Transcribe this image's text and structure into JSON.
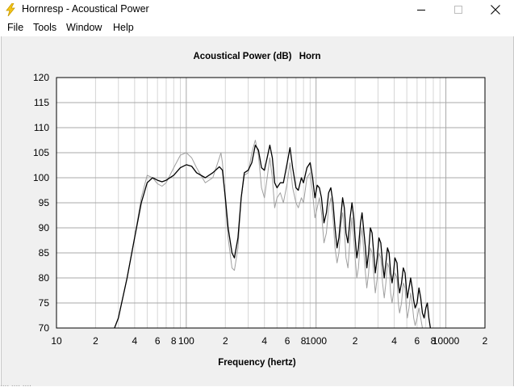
{
  "window": {
    "title": "Hornresp - Acoustical Power",
    "app_icon": "lightning-icon",
    "controls": [
      "minimize-icon",
      "maximize-icon",
      "close-icon"
    ]
  },
  "menu": {
    "items": [
      {
        "label": "File"
      },
      {
        "label": "Tools"
      },
      {
        "label": "Window"
      },
      {
        "label": "Help"
      }
    ]
  },
  "chart_data": {
    "type": "line",
    "title": "Acoustical Power (dB)",
    "title_suffix": "Horn",
    "xlabel": "Frequency (hertz)",
    "ylabel": "",
    "x_scale": "log",
    "xlim": [
      10,
      20000
    ],
    "ylim": [
      70,
      120
    ],
    "grid": true,
    "y_ticks": [
      "120",
      "115",
      "110",
      "105",
      "100",
      "95",
      "90",
      "85",
      "80",
      "75",
      "70"
    ],
    "x_ticks": [
      {
        "value": 10,
        "label": "10"
      },
      {
        "value": 20,
        "label": "2"
      },
      {
        "value": 40,
        "label": "4"
      },
      {
        "value": 60,
        "label": "6"
      },
      {
        "value": 80,
        "label": "8"
      },
      {
        "value": 100,
        "label": "100"
      },
      {
        "value": 200,
        "label": "2"
      },
      {
        "value": 400,
        "label": "4"
      },
      {
        "value": 600,
        "label": "6"
      },
      {
        "value": 800,
        "label": "8"
      },
      {
        "value": 1000,
        "label": "1000"
      },
      {
        "value": 2000,
        "label": "2"
      },
      {
        "value": 4000,
        "label": "4"
      },
      {
        "value": 6000,
        "label": "6"
      },
      {
        "value": 8000,
        "label": "8"
      },
      {
        "value": 10000,
        "label": "10000"
      },
      {
        "value": 20000,
        "label": "2"
      }
    ],
    "series": [
      {
        "color": "#000000",
        "points": [
          [
            28,
            70
          ],
          [
            30,
            72
          ],
          [
            35,
            80
          ],
          [
            40,
            88
          ],
          [
            45,
            95
          ],
          [
            50,
            99
          ],
          [
            55,
            100
          ],
          [
            60,
            99.5
          ],
          [
            65,
            99.2
          ],
          [
            70,
            99.5
          ],
          [
            80,
            100.5
          ],
          [
            90,
            102
          ],
          [
            100,
            102.6
          ],
          [
            110,
            102.3
          ],
          [
            120,
            101
          ],
          [
            140,
            100
          ],
          [
            160,
            101
          ],
          [
            180,
            102.2
          ],
          [
            190,
            101.5
          ],
          [
            200,
            96
          ],
          [
            210,
            90
          ],
          [
            225,
            85
          ],
          [
            235,
            84
          ],
          [
            250,
            88
          ],
          [
            265,
            96
          ],
          [
            280,
            101
          ],
          [
            300,
            101.5
          ],
          [
            320,
            103
          ],
          [
            340,
            106.5
          ],
          [
            360,
            105.5
          ],
          [
            380,
            102
          ],
          [
            400,
            101.5
          ],
          [
            420,
            104
          ],
          [
            440,
            106.5
          ],
          [
            460,
            104
          ],
          [
            480,
            99
          ],
          [
            500,
            98
          ],
          [
            530,
            99
          ],
          [
            560,
            99
          ],
          [
            600,
            103
          ],
          [
            630,
            106
          ],
          [
            660,
            102
          ],
          [
            700,
            98
          ],
          [
            730,
            97.5
          ],
          [
            770,
            100
          ],
          [
            800,
            99
          ],
          [
            850,
            102
          ],
          [
            900,
            103
          ],
          [
            940,
            100
          ],
          [
            980,
            96
          ],
          [
            1020,
            98.5
          ],
          [
            1060,
            98
          ],
          [
            1100,
            96
          ],
          [
            1150,
            91
          ],
          [
            1200,
            93
          ],
          [
            1250,
            97
          ],
          [
            1300,
            98
          ],
          [
            1350,
            95
          ],
          [
            1400,
            90
          ],
          [
            1450,
            86
          ],
          [
            1500,
            88
          ],
          [
            1560,
            93
          ],
          [
            1600,
            96
          ],
          [
            1650,
            94
          ],
          [
            1700,
            89
          ],
          [
            1760,
            87
          ],
          [
            1830,
            92
          ],
          [
            1890,
            95
          ],
          [
            1950,
            92
          ],
          [
            2000,
            88
          ],
          [
            2060,
            84
          ],
          [
            2120,
            86
          ],
          [
            2200,
            91
          ],
          [
            2260,
            93
          ],
          [
            2320,
            90
          ],
          [
            2400,
            86
          ],
          [
            2460,
            82
          ],
          [
            2540,
            85
          ],
          [
            2620,
            90
          ],
          [
            2700,
            89
          ],
          [
            2780,
            85
          ],
          [
            2860,
            81
          ],
          [
            2960,
            84
          ],
          [
            3050,
            88
          ],
          [
            3150,
            87
          ],
          [
            3250,
            83
          ],
          [
            3350,
            80
          ],
          [
            3450,
            83
          ],
          [
            3550,
            86
          ],
          [
            3650,
            85
          ],
          [
            3750,
            81
          ],
          [
            3850,
            79
          ],
          [
            3950,
            81
          ],
          [
            4050,
            84
          ],
          [
            4200,
            83
          ],
          [
            4300,
            79
          ],
          [
            4400,
            77
          ],
          [
            4550,
            79
          ],
          [
            4700,
            82
          ],
          [
            4850,
            81
          ],
          [
            4950,
            78
          ],
          [
            5050,
            76
          ],
          [
            5200,
            78
          ],
          [
            5350,
            80
          ],
          [
            5500,
            78
          ],
          [
            5650,
            75.5
          ],
          [
            5800,
            74
          ],
          [
            6000,
            75
          ],
          [
            6200,
            78
          ],
          [
            6400,
            76
          ],
          [
            6600,
            73
          ],
          [
            6800,
            72
          ],
          [
            7000,
            74
          ],
          [
            7200,
            75
          ],
          [
            7400,
            72
          ],
          [
            7600,
            70
          ]
        ]
      },
      {
        "color": "#a0a0a0",
        "points": [
          [
            28,
            70
          ],
          [
            30,
            72
          ],
          [
            35,
            80
          ],
          [
            40,
            88
          ],
          [
            45,
            96
          ],
          [
            50,
            100.5
          ],
          [
            55,
            100
          ],
          [
            60,
            98.8
          ],
          [
            65,
            98.3
          ],
          [
            70,
            99
          ],
          [
            80,
            102
          ],
          [
            90,
            104.5
          ],
          [
            100,
            105
          ],
          [
            110,
            104
          ],
          [
            120,
            102
          ],
          [
            140,
            99
          ],
          [
            160,
            100
          ],
          [
            180,
            104
          ],
          [
            185,
            105
          ],
          [
            190,
            103
          ],
          [
            200,
            95
          ],
          [
            210,
            88
          ],
          [
            225,
            82
          ],
          [
            235,
            81.5
          ],
          [
            250,
            86
          ],
          [
            265,
            96
          ],
          [
            280,
            100.5
          ],
          [
            300,
            101
          ],
          [
            320,
            105
          ],
          [
            340,
            107.5
          ],
          [
            360,
            104.5
          ],
          [
            380,
            98
          ],
          [
            400,
            96
          ],
          [
            420,
            100
          ],
          [
            440,
            104
          ],
          [
            460,
            100
          ],
          [
            480,
            94
          ],
          [
            500,
            96
          ],
          [
            530,
            97
          ],
          [
            560,
            95
          ],
          [
            600,
            99
          ],
          [
            630,
            103
          ],
          [
            660,
            98
          ],
          [
            700,
            95
          ],
          [
            730,
            94
          ],
          [
            770,
            96
          ],
          [
            800,
            95
          ],
          [
            850,
            100
          ],
          [
            900,
            101
          ],
          [
            940,
            97
          ],
          [
            980,
            92
          ],
          [
            1020,
            94
          ],
          [
            1060,
            96
          ],
          [
            1100,
            93
          ],
          [
            1150,
            87
          ],
          [
            1200,
            89
          ],
          [
            1250,
            94
          ],
          [
            1300,
            96
          ],
          [
            1350,
            92
          ],
          [
            1400,
            86
          ],
          [
            1450,
            83
          ],
          [
            1500,
            85
          ],
          [
            1560,
            91
          ],
          [
            1600,
            93
          ],
          [
            1650,
            90
          ],
          [
            1700,
            84
          ],
          [
            1760,
            82
          ],
          [
            1830,
            88
          ],
          [
            1890,
            92
          ],
          [
            1950,
            88
          ],
          [
            2000,
            84
          ],
          [
            2060,
            80
          ],
          [
            2120,
            82
          ],
          [
            2200,
            88
          ],
          [
            2260,
            90
          ],
          [
            2320,
            86
          ],
          [
            2400,
            81
          ],
          [
            2460,
            78
          ],
          [
            2540,
            81
          ],
          [
            2620,
            86
          ],
          [
            2700,
            85
          ],
          [
            2780,
            81
          ],
          [
            2860,
            77
          ],
          [
            2960,
            80
          ],
          [
            3050,
            85
          ],
          [
            3150,
            84
          ],
          [
            3250,
            79
          ],
          [
            3350,
            76
          ],
          [
            3450,
            79
          ],
          [
            3550,
            83
          ],
          [
            3650,
            82
          ],
          [
            3750,
            77
          ],
          [
            3850,
            75
          ],
          [
            3950,
            77
          ],
          [
            4050,
            81
          ],
          [
            4200,
            80
          ],
          [
            4300,
            75
          ],
          [
            4400,
            73
          ],
          [
            4550,
            75
          ],
          [
            4700,
            79
          ],
          [
            4850,
            78
          ],
          [
            4950,
            74
          ],
          [
            5050,
            72
          ],
          [
            5200,
            74
          ],
          [
            5350,
            77
          ],
          [
            5500,
            75
          ],
          [
            5650,
            72
          ],
          [
            5800,
            70.5
          ],
          [
            6000,
            72
          ],
          [
            6200,
            74
          ],
          [
            6400,
            72
          ],
          [
            6600,
            70
          ]
        ]
      }
    ]
  },
  "status_bar_ghost": "                              ....              ....                    ...."
}
